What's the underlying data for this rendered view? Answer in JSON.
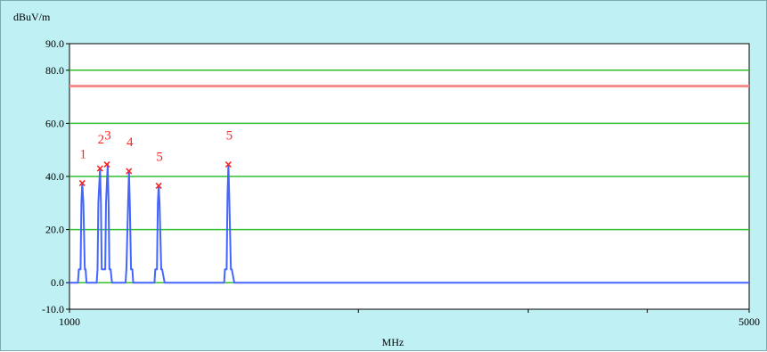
{
  "chart_data": {
    "type": "line",
    "ylabel": "dBuV/m",
    "xlabel": "MHz",
    "xlim": [
      1000,
      5000
    ],
    "ylim": [
      -10,
      90
    ],
    "y_ticks": [
      "90.0",
      "80.0",
      "60.0",
      "40.0",
      "20.0",
      "0.0",
      "-10.0"
    ],
    "y_tick_values": [
      90,
      80,
      60,
      40,
      20,
      0,
      -10
    ],
    "x_ticks": [
      "1000",
      "5000"
    ],
    "x_tick_values": [
      1000,
      5000
    ],
    "x_minor_ticks": [
      1000,
      2700,
      3700,
      4400,
      5000
    ],
    "gridlines_y": [
      80,
      60,
      40,
      20,
      0
    ],
    "limit_line": 74,
    "colors": {
      "background": "#bff0f4",
      "plot_area": "#ffffff",
      "grid": "#2ec02e",
      "limit": "#f28a8a",
      "trace": "#4466ff",
      "marker": "#ff2020"
    },
    "series": [
      {
        "x": [
          1000,
          1050,
          1055,
          1065,
          1070,
          1075,
          1082,
          1090,
          1095,
          1100,
          1120,
          1160,
          1165,
          1170,
          1180,
          1185,
          1190,
          1200,
          1210,
          1215,
          1225,
          1230,
          1235,
          1242,
          1250,
          1255,
          1270,
          1330,
          1335,
          1345,
          1350,
          1355,
          1362,
          1370,
          1375,
          1390,
          1500,
          1505,
          1515,
          1520,
          1525,
          1530,
          1540,
          1545,
          1560,
          1910,
          1915,
          1925,
          1930,
          1935,
          1940,
          1950,
          1955,
          1970,
          5000
        ],
        "y": [
          0,
          0,
          5,
          5,
          30,
          37.5,
          30,
          5,
          5,
          0,
          0,
          0,
          5,
          30,
          43,
          30,
          5,
          5,
          5,
          30,
          44.5,
          30,
          5,
          5,
          0,
          0,
          0,
          0,
          5,
          30,
          42,
          30,
          5,
          5,
          0,
          0,
          0,
          5,
          5,
          30,
          36.5,
          30,
          5,
          5,
          0,
          0,
          5,
          5,
          33,
          44.5,
          33,
          5,
          5,
          0,
          0
        ]
      }
    ],
    "markers": [
      {
        "label": "1",
        "x": 1075,
        "y": 37.5
      },
      {
        "label": "2",
        "x": 1180,
        "y": 43
      },
      {
        "label": "3",
        "x": 1220,
        "y": 44.5
      },
      {
        "label": "4",
        "x": 1350,
        "y": 42
      },
      {
        "label": "5",
        "x": 1525,
        "y": 36.5
      },
      {
        "label": "5",
        "x": 1935,
        "y": 44.5
      }
    ]
  }
}
